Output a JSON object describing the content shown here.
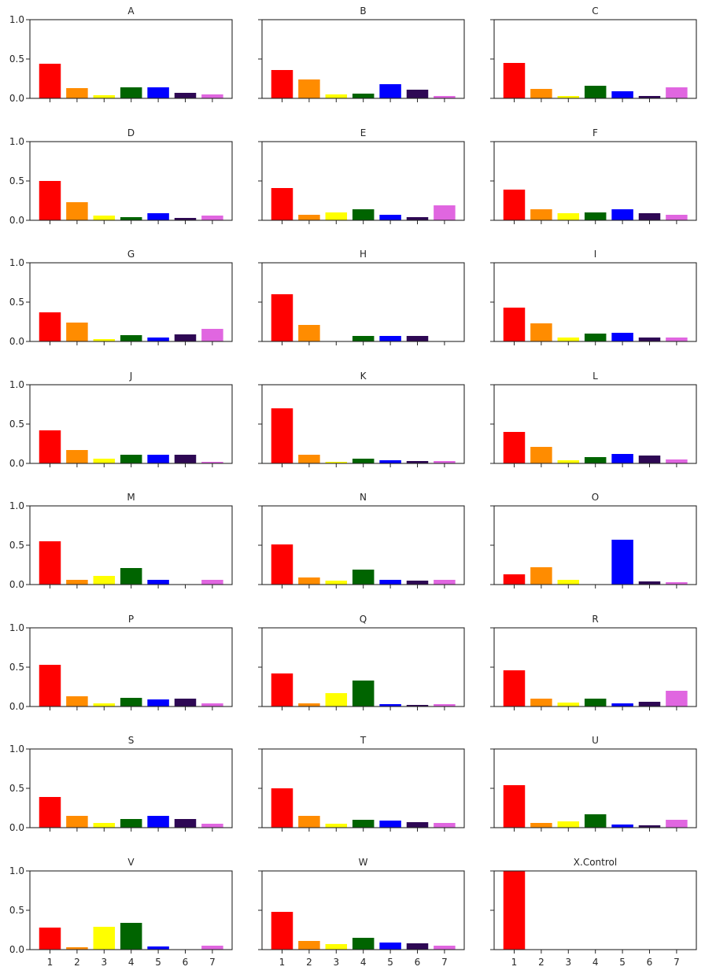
{
  "chart_data": {
    "type": "bar",
    "layout": {
      "rows": 8,
      "cols": 3,
      "sharex": true,
      "sharey": true
    },
    "categories": [
      "1",
      "2",
      "3",
      "4",
      "5",
      "6",
      "7"
    ],
    "category_colors": [
      "#ff0000",
      "#ff8c00",
      "#ffff00",
      "#006400",
      "#0000ff",
      "#2e0854",
      "#e066e0"
    ],
    "yticks": [
      "0.0",
      "0.5",
      "1.0"
    ],
    "ylim": [
      0,
      1.0
    ],
    "grid": false,
    "legend": "none",
    "panels": [
      {
        "title": "A",
        "values": [
          0.44,
          0.13,
          0.04,
          0.14,
          0.14,
          0.07,
          0.05
        ]
      },
      {
        "title": "B",
        "values": [
          0.36,
          0.24,
          0.05,
          0.06,
          0.18,
          0.11,
          0.03
        ]
      },
      {
        "title": "C",
        "values": [
          0.45,
          0.12,
          0.03,
          0.16,
          0.09,
          0.03,
          0.14
        ]
      },
      {
        "title": "D",
        "values": [
          0.5,
          0.23,
          0.06,
          0.04,
          0.09,
          0.03,
          0.06
        ]
      },
      {
        "title": "E",
        "values": [
          0.41,
          0.07,
          0.1,
          0.14,
          0.07,
          0.04,
          0.19
        ]
      },
      {
        "title": "F",
        "values": [
          0.39,
          0.14,
          0.09,
          0.1,
          0.14,
          0.09,
          0.07
        ]
      },
      {
        "title": "G",
        "values": [
          0.37,
          0.24,
          0.03,
          0.08,
          0.05,
          0.09,
          0.16
        ]
      },
      {
        "title": "H",
        "values": [
          0.6,
          0.21,
          0.0,
          0.07,
          0.07,
          0.07,
          0.0
        ]
      },
      {
        "title": "I",
        "values": [
          0.43,
          0.23,
          0.05,
          0.1,
          0.11,
          0.05,
          0.05
        ]
      },
      {
        "title": "J",
        "values": [
          0.42,
          0.17,
          0.06,
          0.11,
          0.11,
          0.11,
          0.02
        ]
      },
      {
        "title": "K",
        "values": [
          0.7,
          0.11,
          0.02,
          0.06,
          0.04,
          0.03,
          0.03
        ]
      },
      {
        "title": "L",
        "values": [
          0.4,
          0.21,
          0.04,
          0.08,
          0.12,
          0.1,
          0.05
        ]
      },
      {
        "title": "M",
        "values": [
          0.55,
          0.06,
          0.11,
          0.21,
          0.06,
          0.0,
          0.06
        ]
      },
      {
        "title": "N",
        "values": [
          0.51,
          0.09,
          0.05,
          0.19,
          0.06,
          0.05,
          0.06
        ]
      },
      {
        "title": "O",
        "values": [
          0.13,
          0.22,
          0.06,
          0.0,
          0.57,
          0.04,
          0.03
        ]
      },
      {
        "title": "P",
        "values": [
          0.53,
          0.13,
          0.04,
          0.11,
          0.09,
          0.1,
          0.04
        ]
      },
      {
        "title": "Q",
        "values": [
          0.42,
          0.04,
          0.17,
          0.33,
          0.03,
          0.02,
          0.03
        ]
      },
      {
        "title": "R",
        "values": [
          0.46,
          0.1,
          0.05,
          0.1,
          0.04,
          0.06,
          0.2
        ]
      },
      {
        "title": "S",
        "values": [
          0.39,
          0.15,
          0.06,
          0.11,
          0.15,
          0.11,
          0.05
        ]
      },
      {
        "title": "T",
        "values": [
          0.5,
          0.15,
          0.05,
          0.1,
          0.09,
          0.07,
          0.06
        ]
      },
      {
        "title": "U",
        "values": [
          0.54,
          0.06,
          0.08,
          0.17,
          0.04,
          0.03,
          0.1
        ]
      },
      {
        "title": "V",
        "values": [
          0.28,
          0.03,
          0.29,
          0.34,
          0.04,
          0.0,
          0.05
        ]
      },
      {
        "title": "W",
        "values": [
          0.48,
          0.11,
          0.07,
          0.15,
          0.09,
          0.08,
          0.05
        ]
      },
      {
        "title": "X.Control",
        "values": [
          1.0,
          0.0,
          0.0,
          0.0,
          0.0,
          0.0,
          0.0
        ]
      }
    ]
  }
}
